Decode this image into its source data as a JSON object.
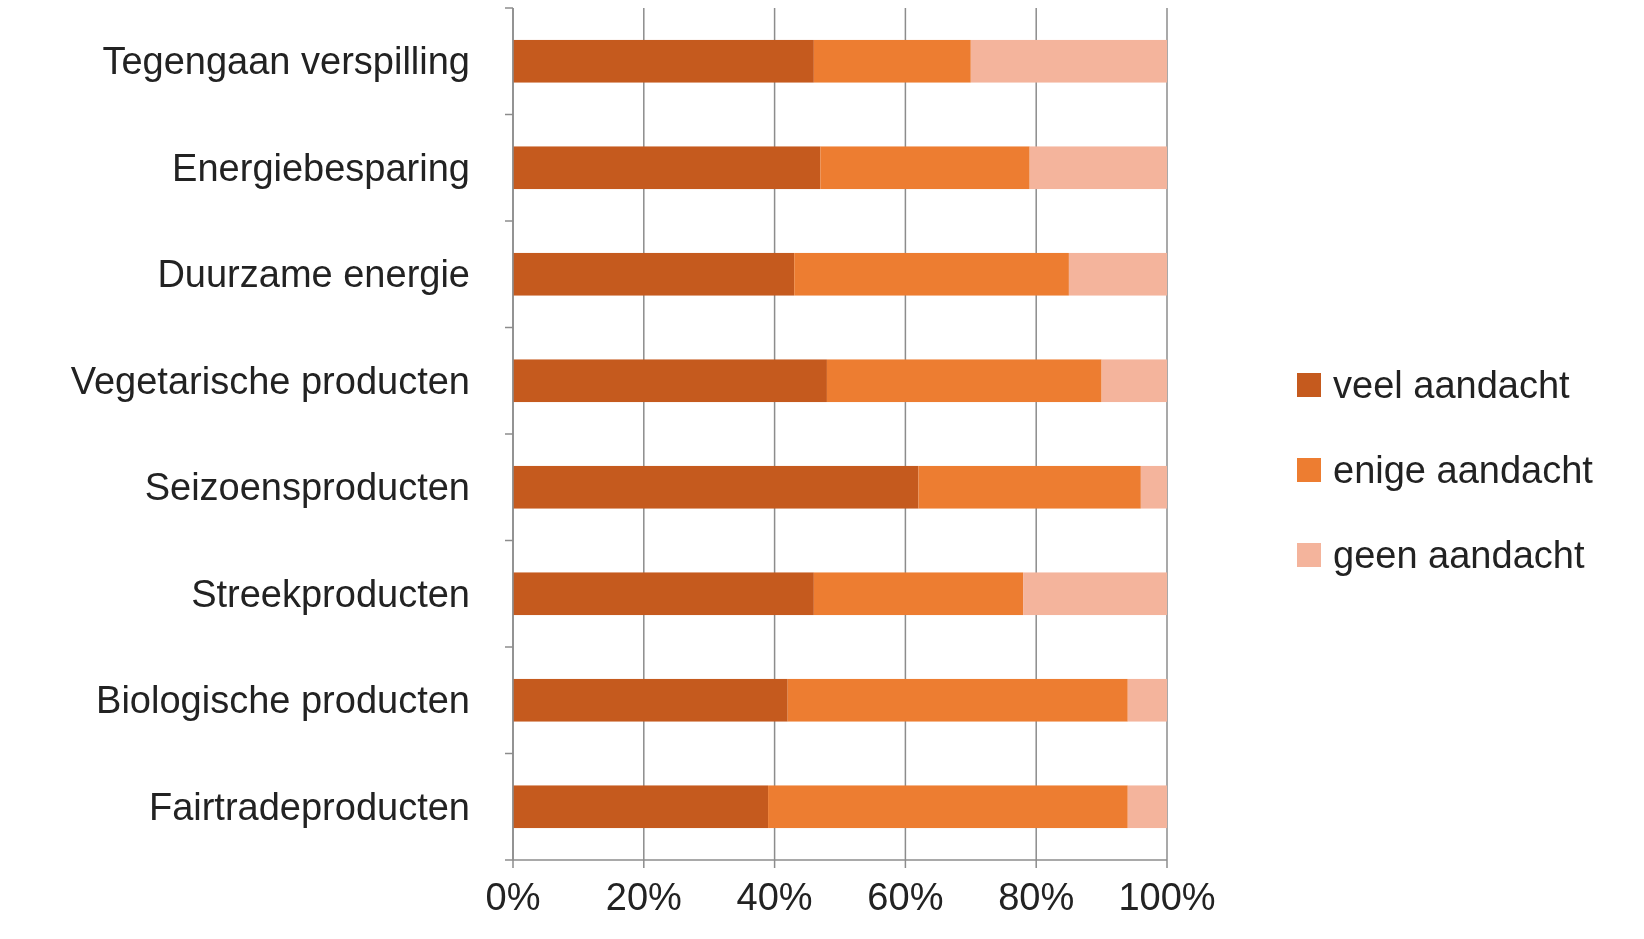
{
  "chart_data": {
    "type": "bar",
    "orientation": "horizontal",
    "stacked": true,
    "categories": [
      "Tegengaan verspilling",
      "Energiebesparing",
      "Duurzame energie",
      "Vegetarische producten",
      "Seizoensproducten",
      "Streekproducten",
      "Biologische producten",
      "Fairtradeproducten"
    ],
    "series": [
      {
        "name": "veel aandacht",
        "color": "#c55a1e",
        "values": [
          46,
          47,
          43,
          48,
          62,
          46,
          42,
          39
        ]
      },
      {
        "name": "enige aandacht",
        "color": "#ed7d31",
        "values": [
          24,
          32,
          42,
          42,
          34,
          32,
          52,
          55
        ]
      },
      {
        "name": "geen aandacht",
        "color": "#f4b49c",
        "values": [
          30,
          21,
          15,
          10,
          4,
          22,
          6,
          6
        ]
      }
    ],
    "xlim": [
      0,
      100
    ],
    "xticks": [
      {
        "value": 0,
        "label": "0%"
      },
      {
        "value": 20,
        "label": "20%"
      },
      {
        "value": 40,
        "label": "40%"
      },
      {
        "value": 60,
        "label": "60%"
      },
      {
        "value": 80,
        "label": "80%"
      },
      {
        "value": 100,
        "label": "100%"
      }
    ],
    "grid": "x",
    "legend": "right"
  }
}
